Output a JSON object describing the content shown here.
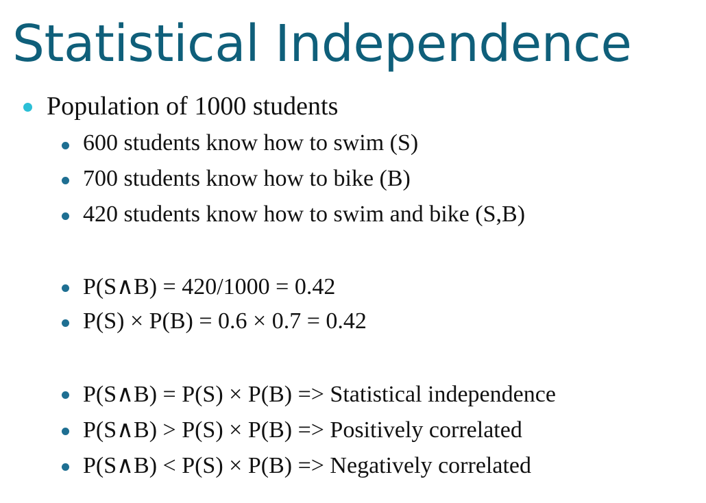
{
  "slide": {
    "title": "Statistical Independence",
    "colors": {
      "title": "#0f5f7a",
      "bullet_primary": "#2bbfd6",
      "bullet_secondary": "#1e6f92",
      "text": "#111111"
    },
    "bullets": {
      "population": "Population of 1000 students",
      "swim": "600 students know how to swim (S)",
      "bike": "700 students know how to bike (B)",
      "both": "420 students know how to swim and bike (S,B)",
      "p_joint": "P(S∧B) = 420/1000 = 0.42",
      "p_product": "P(S) × P(B) = 0.6 × 0.7 = 0.42",
      "rule_equal": "P(S∧B) = P(S) × P(B) => Statistical independence",
      "rule_greater": "P(S∧B) > P(S) × P(B) => Positively correlated",
      "rule_less": "P(S∧B) < P(S) × P(B) => Negatively correlated"
    }
  }
}
